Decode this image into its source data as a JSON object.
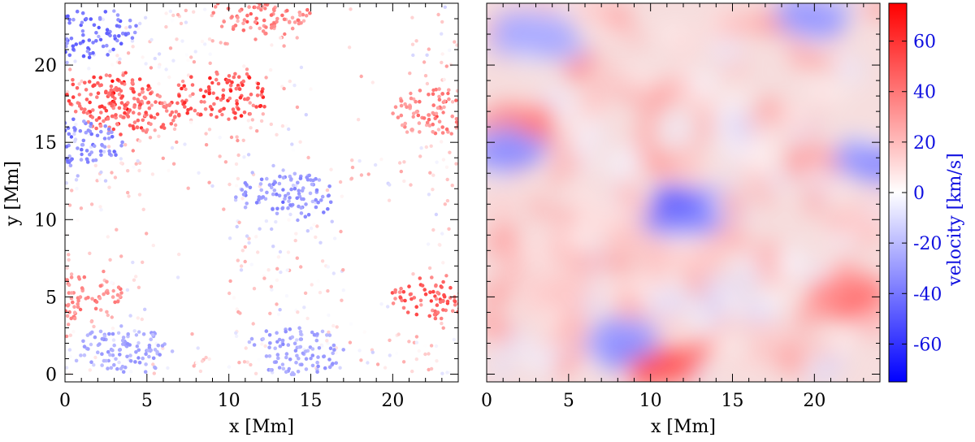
{
  "chart_data": [
    {
      "type": "scatter",
      "panel": "left",
      "xlabel": "x [Mm]",
      "ylabel": "y [Mm]",
      "xlim": [
        0,
        24
      ],
      "ylim": [
        -0.5,
        24
      ],
      "xticks": [
        0,
        5,
        10,
        15,
        20
      ],
      "yticks": [
        0,
        5,
        10,
        15,
        20
      ],
      "color_by": "velocity",
      "description_regions": [
        {
          "x": 1.5,
          "y": 22,
          "v": -45
        },
        {
          "x": 2.5,
          "y": 18,
          "v": 55
        },
        {
          "x": 4,
          "y": 17,
          "v": 50
        },
        {
          "x": 0.5,
          "y": 15,
          "v": -40
        },
        {
          "x": 9.5,
          "y": 18,
          "v": 60
        },
        {
          "x": 13.5,
          "y": 11.5,
          "v": -35
        },
        {
          "x": 23,
          "y": 17,
          "v": 40
        },
        {
          "x": 23,
          "y": 5,
          "v": 50
        },
        {
          "x": 0.5,
          "y": 5,
          "v": 40
        },
        {
          "x": 14,
          "y": 1.5,
          "v": -30
        },
        {
          "x": 3.5,
          "y": 1.5,
          "v": -30
        },
        {
          "x": 12,
          "y": 23.5,
          "v": 40
        }
      ]
    },
    {
      "type": "heatmap",
      "panel": "right",
      "xlabel": "x [Mm]",
      "xlim": [
        0,
        24
      ],
      "ylim": [
        -0.5,
        24
      ],
      "xticks": [
        0,
        5,
        10,
        15,
        20
      ],
      "color_by": "velocity",
      "description_regions": [
        {
          "x": 2,
          "y": 16,
          "v": 45
        },
        {
          "x": 12,
          "y": 10.5,
          "v": -45
        },
        {
          "x": 0.8,
          "y": 14.5,
          "v": -35
        },
        {
          "x": 23.5,
          "y": 14,
          "v": -35
        },
        {
          "x": 11,
          "y": 0.5,
          "v": 55
        },
        {
          "x": 20,
          "y": 23,
          "v": -30
        },
        {
          "x": 8,
          "y": 2,
          "v": -35
        },
        {
          "x": 22,
          "y": 5,
          "v": 45
        },
        {
          "x": 3,
          "y": 22,
          "v": -25
        }
      ]
    }
  ],
  "colorbar": {
    "label": "velocity [km/s]",
    "range": [
      -75,
      75
    ],
    "ticks": [
      60,
      40,
      20,
      0,
      -20,
      -40,
      -60
    ],
    "tick_labels": [
      "60",
      "40",
      "20",
      "0",
      "-20",
      "-40",
      "-60"
    ],
    "color_low": "#0000ff",
    "color_mid": "#ffffff",
    "color_high": "#ff0000"
  },
  "labels": {
    "left_xlabel": "x [Mm]",
    "left_ylabel": "y [Mm]",
    "right_xlabel": "x [Mm]",
    "x_tick_labels": [
      "0",
      "5",
      "10",
      "15",
      "20"
    ],
    "y_tick_labels": [
      "0",
      "5",
      "10",
      "15",
      "20"
    ]
  }
}
